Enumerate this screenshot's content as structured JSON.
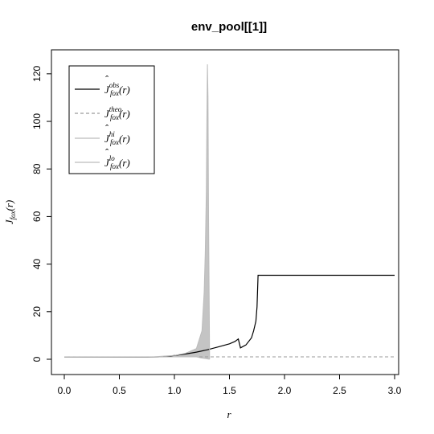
{
  "chart_data": {
    "type": "line",
    "title": "env_pool[[1]]",
    "xlabel": "r",
    "ylabel": "J_fox(r)",
    "xlim": [
      0,
      3.0
    ],
    "ylim": [
      0,
      125
    ],
    "x_ticks": [
      "0.0",
      "0.5",
      "1.0",
      "1.5",
      "2.0",
      "2.5",
      "3.0"
    ],
    "y_ticks": [
      "0",
      "20",
      "40",
      "60",
      "80",
      "100",
      "120"
    ],
    "legend_position": "top-left",
    "series": [
      {
        "name": "obs",
        "color": "#000000",
        "style": "solid",
        "x": [
          0,
          0.2,
          0.4,
          0.6,
          0.75,
          0.85,
          0.95,
          1.0,
          1.1,
          1.2,
          1.3,
          1.4,
          1.5,
          1.55,
          1.58,
          1.6,
          1.65,
          1.7,
          1.72,
          1.74,
          1.75,
          1.76,
          3.0
        ],
        "y": [
          0.9,
          0.9,
          0.9,
          0.9,
          0.9,
          1.0,
          1.3,
          1.6,
          2.2,
          3.0,
          4.0,
          5.2,
          6.5,
          7.5,
          8.5,
          4.8,
          6.0,
          9.0,
          12.0,
          16.0,
          22.0,
          35.3,
          35.3
        ]
      },
      {
        "name": "theo",
        "color": "#9a9a9a",
        "style": "dashed",
        "x": [
          0,
          3.0
        ],
        "y": [
          1.0,
          1.0
        ]
      },
      {
        "name": "hi",
        "color": "#bcbcbc",
        "style": "solid",
        "x": [
          0,
          0.8,
          1.0,
          1.1,
          1.2,
          1.25,
          1.27,
          1.28,
          1.29,
          1.295,
          1.3,
          1.305,
          1.31,
          1.32
        ],
        "y": [
          0.9,
          1.0,
          1.6,
          2.5,
          4.5,
          12,
          28,
          45,
          70,
          100,
          124,
          110,
          60,
          0
        ]
      },
      {
        "name": "lo",
        "color": "#bcbcbc",
        "style": "solid",
        "x": [
          0,
          0.8,
          1.0,
          1.1,
          1.2,
          1.25,
          1.32
        ],
        "y": [
          0.9,
          0.9,
          1.0,
          1.0,
          1.0,
          0.5,
          0
        ]
      }
    ],
    "legend": [
      {
        "base": "J",
        "hat": true,
        "sub": "fox",
        "sup": "obs",
        "arg": "(r)"
      },
      {
        "base": "J",
        "hat": false,
        "sub": "fox",
        "sup": "theo",
        "arg": "(r)"
      },
      {
        "base": "J",
        "hat": true,
        "sub": "fox",
        "sup": "hi",
        "arg": "(r)"
      },
      {
        "base": "J",
        "hat": true,
        "sub": "fox",
        "sup": "lo",
        "arg": "(r)"
      }
    ]
  }
}
